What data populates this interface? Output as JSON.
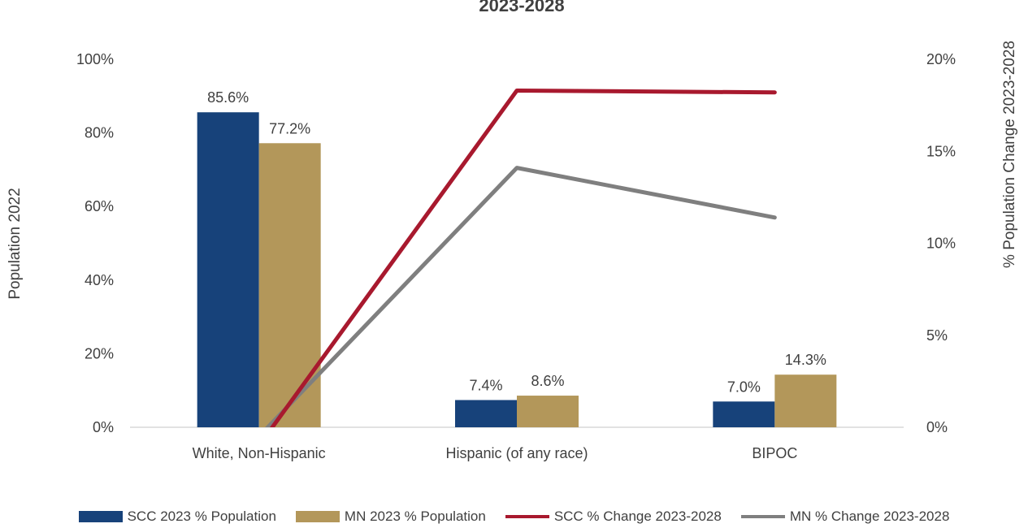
{
  "chart_data": {
    "type": "bar",
    "title": "2023-2028",
    "categories": [
      "White, Non-Hispanic",
      "Hispanic (of any race)",
      "BIPOC"
    ],
    "series": [
      {
        "name": "SCC 2023 % Population",
        "type": "bar",
        "axis": "left",
        "values": [
          85.6,
          7.4,
          7.0
        ],
        "labels": [
          "85.6%",
          "7.4%",
          "7.0%"
        ],
        "color": "#17427a"
      },
      {
        "name": "MN 2023 % Population",
        "type": "bar",
        "axis": "left",
        "values": [
          77.2,
          8.6,
          14.3
        ],
        "labels": [
          "77.2%",
          "8.6%",
          "14.3%"
        ],
        "color": "#b3975a"
      },
      {
        "name": "SCC % Change 2023-2028",
        "type": "line",
        "axis": "right",
        "values": [
          -1.0,
          18.3,
          18.2
        ],
        "color": "#a8192e"
      },
      {
        "name": "MN % Change 2023-2028",
        "type": "line",
        "axis": "right",
        "values": [
          -0.5,
          14.1,
          11.4
        ],
        "color": "#7f7f7f"
      }
    ],
    "ylabel": "Population 2022",
    "ylabel_right": "% Population Change 2023-2028",
    "ylim": [
      0,
      100
    ],
    "ylim_right": [
      0,
      20
    ],
    "yticks": [
      "0%",
      "20%",
      "40%",
      "60%",
      "80%",
      "100%"
    ],
    "yticks_right": [
      "0%",
      "5%",
      "10%",
      "15%",
      "20%"
    ],
    "grid": false,
    "legend_position": "bottom"
  }
}
